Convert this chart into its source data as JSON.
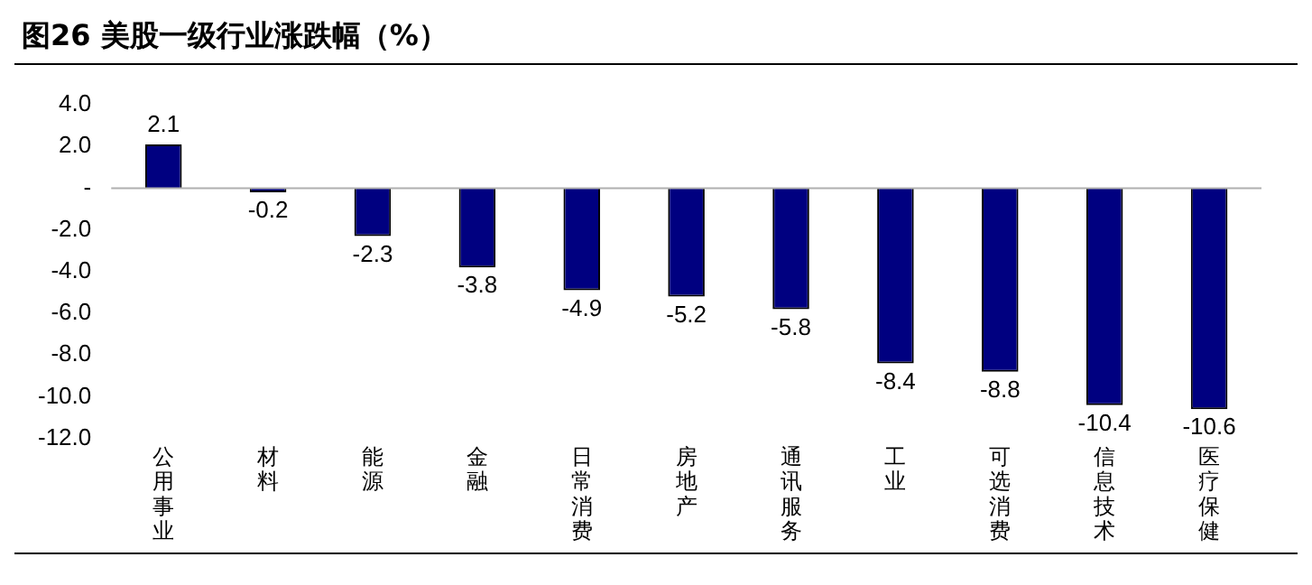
{
  "chart_data": {
    "type": "bar",
    "title": "图26 美股一级行业涨跌幅（%）",
    "categories": [
      "公用事业",
      "材料",
      "能源",
      "金融",
      "日常消费",
      "房地产",
      "通讯服务",
      "工业",
      "可选消费",
      "信息技术",
      "医疗保健"
    ],
    "values": [
      2.1,
      -0.2,
      -2.3,
      -3.8,
      -4.9,
      -5.2,
      -5.8,
      -8.4,
      -8.8,
      -10.4,
      -10.6
    ],
    "color": "#000080",
    "ylim": [
      -12,
      4
    ],
    "yticks": [
      {
        "value": 4,
        "label": "4.0"
      },
      {
        "value": 2,
        "label": "2.0"
      },
      {
        "value": 0,
        "label": "-"
      },
      {
        "value": -2,
        "label": "-2.0"
      },
      {
        "value": -4,
        "label": "-4.0"
      },
      {
        "value": -6,
        "label": "-6.0"
      },
      {
        "value": -8,
        "label": "-8.0"
      },
      {
        "value": -10,
        "label": "-10.0"
      },
      {
        "value": -12,
        "label": "-12.0"
      }
    ],
    "ref_lines": [
      {
        "axis": "y",
        "value": 0,
        "color": "#b0b0b0"
      }
    ],
    "data_labels": true
  }
}
